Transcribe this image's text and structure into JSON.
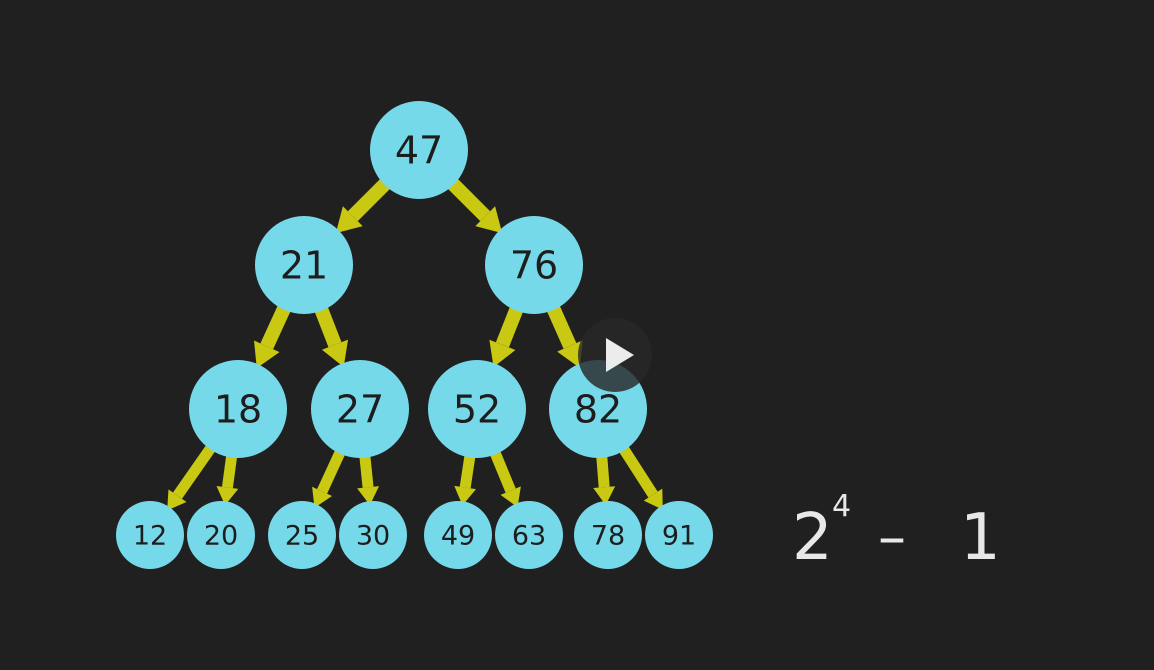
{
  "tree": {
    "colors": {
      "node_fill": "#76d9ea",
      "edge": "#c9c812",
      "text": "#1d1d1d",
      "background": "#202020"
    },
    "nodes": [
      {
        "id": "n47",
        "value": "47",
        "level": 0
      },
      {
        "id": "n21",
        "value": "21",
        "level": 1
      },
      {
        "id": "n76",
        "value": "76",
        "level": 1
      },
      {
        "id": "n18",
        "value": "18",
        "level": 2
      },
      {
        "id": "n27",
        "value": "27",
        "level": 2
      },
      {
        "id": "n52",
        "value": "52",
        "level": 2
      },
      {
        "id": "n82",
        "value": "82",
        "level": 2
      },
      {
        "id": "n12",
        "value": "12",
        "level": 3
      },
      {
        "id": "n20",
        "value": "20",
        "level": 3
      },
      {
        "id": "n25",
        "value": "25",
        "level": 3
      },
      {
        "id": "n30",
        "value": "30",
        "level": 3
      },
      {
        "id": "n49",
        "value": "49",
        "level": 3
      },
      {
        "id": "n63",
        "value": "63",
        "level": 3
      },
      {
        "id": "n78",
        "value": "78",
        "level": 3
      },
      {
        "id": "n91",
        "value": "91",
        "level": 3
      }
    ],
    "edges": [
      [
        "n47",
        "n21"
      ],
      [
        "n47",
        "n76"
      ],
      [
        "n21",
        "n18"
      ],
      [
        "n21",
        "n27"
      ],
      [
        "n76",
        "n52"
      ],
      [
        "n76",
        "n82"
      ],
      [
        "n18",
        "n12"
      ],
      [
        "n18",
        "n20"
      ],
      [
        "n27",
        "n25"
      ],
      [
        "n27",
        "n30"
      ],
      [
        "n52",
        "n49"
      ],
      [
        "n52",
        "n63"
      ],
      [
        "n82",
        "n78"
      ],
      [
        "n82",
        "n91"
      ]
    ]
  },
  "formula": {
    "base": "2",
    "exponent": "4",
    "operator": "–",
    "operand": "1"
  },
  "player": {
    "icon": "play-icon"
  }
}
